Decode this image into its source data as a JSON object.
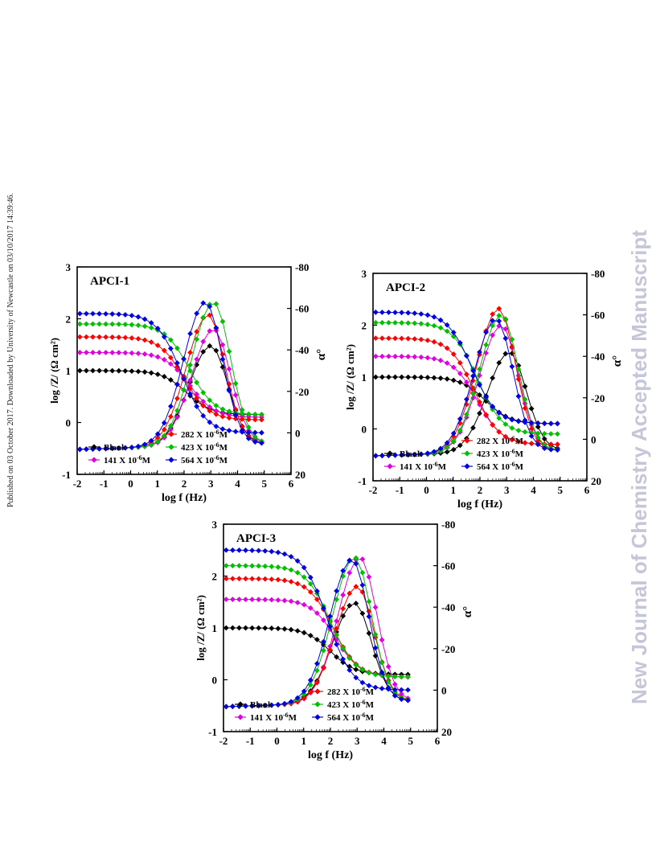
{
  "side_note": "Published on 03 October 2017. Downloaded by University of Newcastle on 03/10/2017 14:39:46.",
  "watermark": "New Journal of Chemistry Accepted Manuscript",
  "colors": {
    "Blank": "#000000",
    "141 X 10-6M": "#e000e0",
    "282 X 10-6M": "#ff0000",
    "423 X 10-6M": "#00c000",
    "564 X 10-6M": "#0000e0"
  },
  "chart_data": [
    {
      "type": "line",
      "title": "APCI-1",
      "xlabel": "log f (Hz)",
      "ylabel_left": "log /Z/ (Ω cm²)",
      "ylabel_right": "α°",
      "xlim": [
        -2,
        6
      ],
      "ylim_left": [
        -1,
        3
      ],
      "ylim_right": [
        20,
        -80
      ],
      "x_ticks": [
        -2,
        -1,
        0,
        1,
        2,
        3,
        4,
        5,
        6
      ],
      "y_ticks_left": [
        -1,
        0,
        1,
        2,
        3
      ],
      "y_ticks_right": [
        -80,
        -60,
        -40,
        -20,
        0,
        20
      ],
      "legend": [
        "Blank",
        "141 X 10-6M",
        "282 X 10-6M",
        "423 X 10-6M",
        "564 X 10-6M"
      ],
      "series": [
        {
          "name": "Blank",
          "impedance_plateau": 1.0,
          "impedance_end": 0.15,
          "phase_peak": -42,
          "peak_logf": 3.0
        },
        {
          "name": "141 X 10-6M",
          "impedance_plateau": 1.35,
          "impedance_end": 0.1,
          "phase_peak": -50,
          "peak_logf": 3.1
        },
        {
          "name": "282 X 10-6M",
          "impedance_plateau": 1.65,
          "impedance_end": 0.05,
          "phase_peak": -57,
          "peak_logf": 2.9
        },
        {
          "name": "423 X 10-6M",
          "impedance_plateau": 1.9,
          "impedance_end": 0.15,
          "phase_peak": -63,
          "peak_logf": 3.1
        },
        {
          "name": "564 X 10-6M",
          "impedance_plateau": 2.1,
          "impedance_end": -0.2,
          "phase_peak": -63,
          "peak_logf": 2.8
        }
      ]
    },
    {
      "type": "line",
      "title": "APCI-2",
      "xlabel": "log f (Hz)",
      "ylabel_left": "log /Z/ (Ω cm²)",
      "ylabel_right": "α°",
      "xlim": [
        -2,
        6
      ],
      "ylim_left": [
        -1,
        3
      ],
      "ylim_right": [
        20,
        -80
      ],
      "x_ticks": [
        -2,
        -1,
        0,
        1,
        2,
        3,
        4,
        5,
        6
      ],
      "y_ticks_left": [
        -1,
        0,
        1,
        2,
        3
      ],
      "y_ticks_right": [
        -80,
        -60,
        -40,
        -20,
        0,
        20
      ],
      "legend": [
        "Blank",
        "141 X 10-6M",
        "282 X 10-6M",
        "423 X 10-6M",
        "564 X 10-6M"
      ],
      "series": [
        {
          "name": "Blank",
          "impedance_plateau": 1.0,
          "impedance_end": 0.1,
          "phase_peak": -42,
          "peak_logf": 3.1
        },
        {
          "name": "141 X 10-6M",
          "impedance_plateau": 1.4,
          "impedance_end": -0.3,
          "phase_peak": -55,
          "peak_logf": 2.8
        },
        {
          "name": "282 X 10-6M",
          "impedance_plateau": 1.75,
          "impedance_end": -0.3,
          "phase_peak": -63,
          "peak_logf": 2.7
        },
        {
          "name": "423 X 10-6M",
          "impedance_plateau": 2.05,
          "impedance_end": -0.1,
          "phase_peak": -60,
          "peak_logf": 2.8
        },
        {
          "name": "564 X 10-6M",
          "impedance_plateau": 2.25,
          "impedance_end": 0.1,
          "phase_peak": -58,
          "peak_logf": 2.6
        }
      ]
    },
    {
      "type": "line",
      "title": "APCI-3",
      "xlabel": "log f (Hz)",
      "ylabel_left": "log /Z/ (Ω cm²)",
      "ylabel_right": "α°",
      "xlim": [
        -2,
        6
      ],
      "ylim_left": [
        -1,
        3
      ],
      "ylim_right": [
        20,
        -80
      ],
      "x_ticks": [
        -2,
        -1,
        0,
        1,
        2,
        3,
        4,
        5,
        6
      ],
      "y_ticks_left": [
        -1,
        0,
        1,
        2,
        3
      ],
      "y_ticks_right": [
        -80,
        -60,
        -40,
        -20,
        0,
        20
      ],
      "legend": [
        "Blank",
        "141 X 10-6M",
        "282 X 10-6M",
        "423 X 10-6M",
        "564 X 10-6M"
      ],
      "series": [
        {
          "name": "Blank",
          "impedance_plateau": 1.0,
          "impedance_end": 0.1,
          "phase_peak": -42,
          "peak_logf": 2.9
        },
        {
          "name": "141 X 10-6M",
          "impedance_plateau": 1.55,
          "impedance_end": 0.05,
          "phase_peak": -64,
          "peak_logf": 3.1
        },
        {
          "name": "282 X 10-6M",
          "impedance_plateau": 1.95,
          "impedance_end": 0.05,
          "phase_peak": -50,
          "peak_logf": 3.0
        },
        {
          "name": "423 X 10-6M",
          "impedance_plateau": 2.2,
          "impedance_end": 0.05,
          "phase_peak": -64,
          "peak_logf": 2.9
        },
        {
          "name": "564 X 10-6M",
          "impedance_plateau": 2.5,
          "impedance_end": -0.2,
          "phase_peak": -63,
          "peak_logf": 2.8
        }
      ]
    }
  ]
}
